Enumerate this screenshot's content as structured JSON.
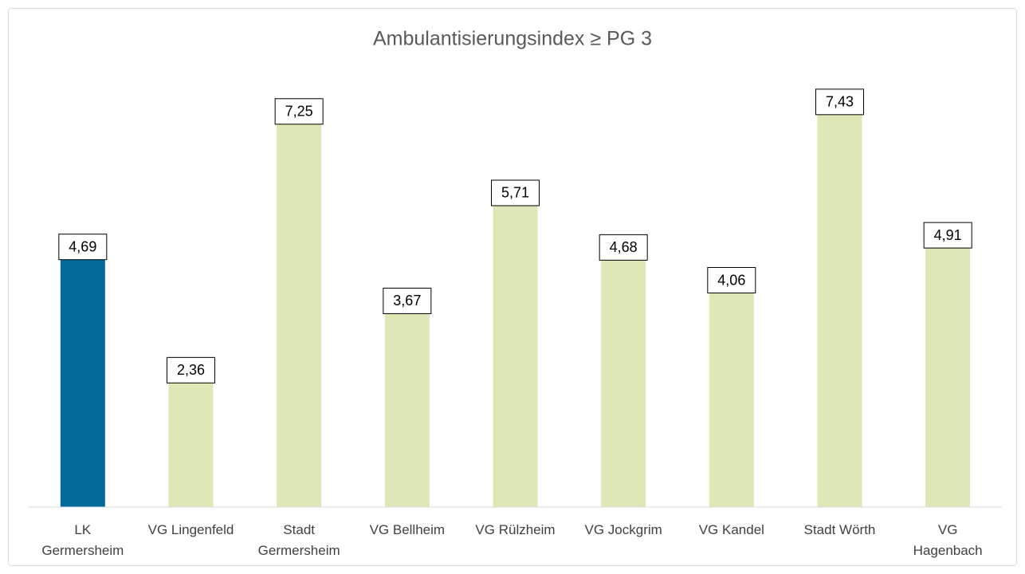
{
  "chart_data": {
    "type": "bar",
    "title": "Ambulantisierungsindex ≥ PG 3",
    "categories": [
      "LK\nGermersheim",
      "VG Lingenfeld",
      "Stadt\nGermersheim",
      "VG Bellheim",
      "VG Rülzheim",
      "VG Jockgrim",
      "VG Kandel",
      "Stadt Wörth",
      "VG\nHagenbach"
    ],
    "values": [
      4.69,
      2.36,
      7.25,
      3.67,
      5.71,
      4.68,
      4.06,
      7.43,
      4.91
    ],
    "value_labels": [
      "4,69",
      "2,36",
      "7,25",
      "3,67",
      "5,71",
      "4,68",
      "4,06",
      "7,43",
      "4,91"
    ],
    "colors": [
      "#006a9a",
      "#dde8b6",
      "#dde8b6",
      "#dde8b6",
      "#dde8b6",
      "#dde8b6",
      "#dde8b6",
      "#dde8b6",
      "#dde8b6"
    ],
    "ylim": [
      0,
      8
    ]
  }
}
